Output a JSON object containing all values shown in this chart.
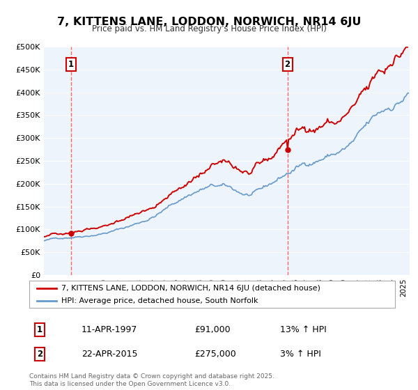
{
  "title": "7, KITTENS LANE, LODDON, NORWICH, NR14 6JU",
  "subtitle": "Price paid vs. HM Land Registry's House Price Index (HPI)",
  "legend_line1": "7, KITTENS LANE, LODDON, NORWICH, NR14 6JU (detached house)",
  "legend_line2": "HPI: Average price, detached house, South Norfolk",
  "sale1_label": "1",
  "sale1_date": "11-APR-1997",
  "sale1_price": "£91,000",
  "sale1_hpi": "13% ↑ HPI",
  "sale1_x": 1997.27,
  "sale1_y": 91000,
  "sale2_label": "2",
  "sale2_date": "22-APR-2015",
  "sale2_price": "£275,000",
  "sale2_hpi": "3% ↑ HPI",
  "sale2_x": 2015.31,
  "sale2_y": 275000,
  "red_color": "#cc0000",
  "blue_color": "#6699cc",
  "dashed_color": "#ff6666",
  "plot_bg": "#eef4fb",
  "grid_color": "#ffffff",
  "ylim": [
    0,
    500000
  ],
  "xlim": [
    1995,
    2025.5
  ],
  "yticks": [
    0,
    50000,
    100000,
    150000,
    200000,
    250000,
    300000,
    350000,
    400000,
    450000,
    500000
  ],
  "ytick_labels": [
    "£0",
    "£50K",
    "£100K",
    "£150K",
    "£200K",
    "£250K",
    "£300K",
    "£350K",
    "£400K",
    "£450K",
    "£500K"
  ],
  "footer": "Contains HM Land Registry data © Crown copyright and database right 2025.\nThis data is licensed under the Open Government Licence v3.0."
}
